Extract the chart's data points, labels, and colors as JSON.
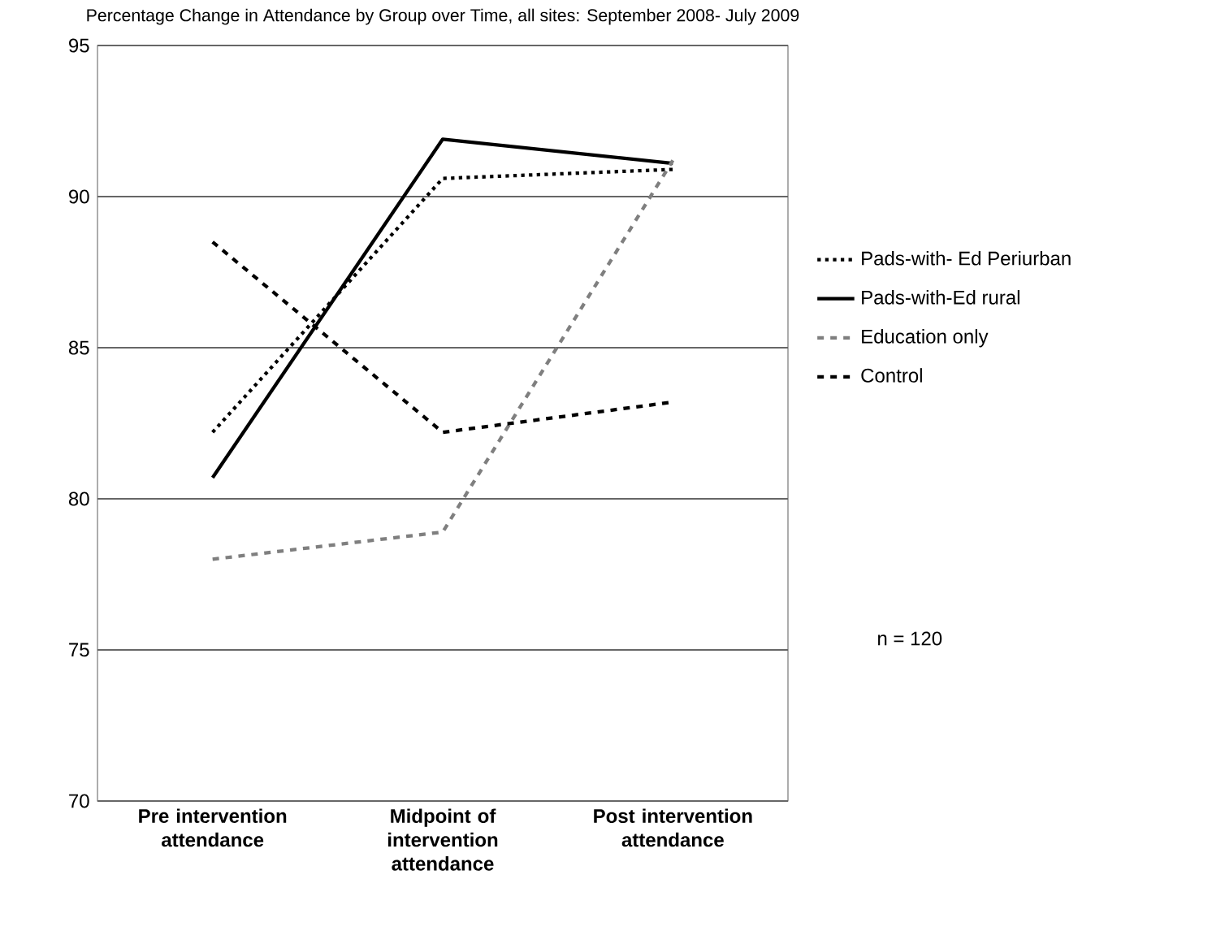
{
  "chart_data": {
    "type": "line",
    "title": "Percentage Change in Attendance by Group over Time, all sites: September 2008- July 2009",
    "categories": [
      "Pre intervention attendance",
      "Midpoint of intervention attendance",
      "Post intervention attendance"
    ],
    "series": [
      {
        "name": "Pads-with- Ed Periurban",
        "color": "#000000",
        "line_style": "dotted",
        "values": [
          82.2,
          90.6,
          90.9
        ]
      },
      {
        "name": "Pads-with-Ed rural",
        "color": "#000000",
        "line_style": "solid",
        "values": [
          80.7,
          91.9,
          91.1
        ]
      },
      {
        "name": "Education only",
        "color": "#7f7f7f",
        "line_style": "dashed",
        "values": [
          78.0,
          78.9,
          91.2
        ]
      },
      {
        "name": "Control",
        "color": "#000000",
        "line_style": "dashed",
        "values": [
          88.5,
          82.2,
          83.2
        ]
      }
    ],
    "ylim": [
      70,
      95
    ],
    "yticks": [
      70,
      75,
      80,
      85,
      90,
      95
    ],
    "grid": "y",
    "legend": "right",
    "marker": "none",
    "annotations": [
      "n = 120"
    ]
  }
}
